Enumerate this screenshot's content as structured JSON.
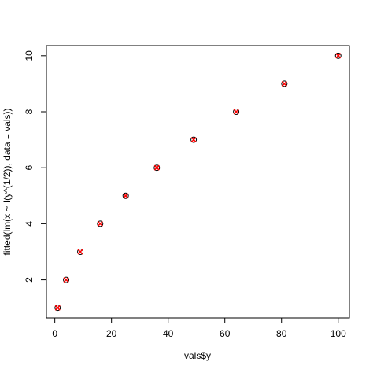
{
  "chart_data": {
    "type": "scatter",
    "x_label": "vals$y",
    "y_label": "fitted(lm(x ~ I(y^(1/2)), data = vals))",
    "series": [
      {
        "color": "#000000",
        "marker": "circle",
        "x": [
          1,
          4,
          9,
          16,
          25,
          36,
          49,
          64,
          81,
          100
        ],
        "values": [
          1,
          2,
          3,
          4,
          5,
          6,
          7,
          8,
          9,
          10
        ]
      },
      {
        "color": "#ff0000",
        "marker": "cross",
        "x": [
          1,
          4,
          9,
          16,
          25,
          36,
          49,
          64,
          81,
          100
        ],
        "values": [
          1,
          2,
          3,
          4,
          5,
          6,
          7,
          8,
          9,
          10
        ]
      }
    ],
    "xlim": [
      -2.96,
      103.96
    ],
    "xticks": [
      0,
      20,
      40,
      60,
      80,
      100
    ],
    "ylim": [
      0.64,
      10.36
    ],
    "yticks": [
      2,
      4,
      6,
      8,
      10
    ],
    "grid": false
  }
}
